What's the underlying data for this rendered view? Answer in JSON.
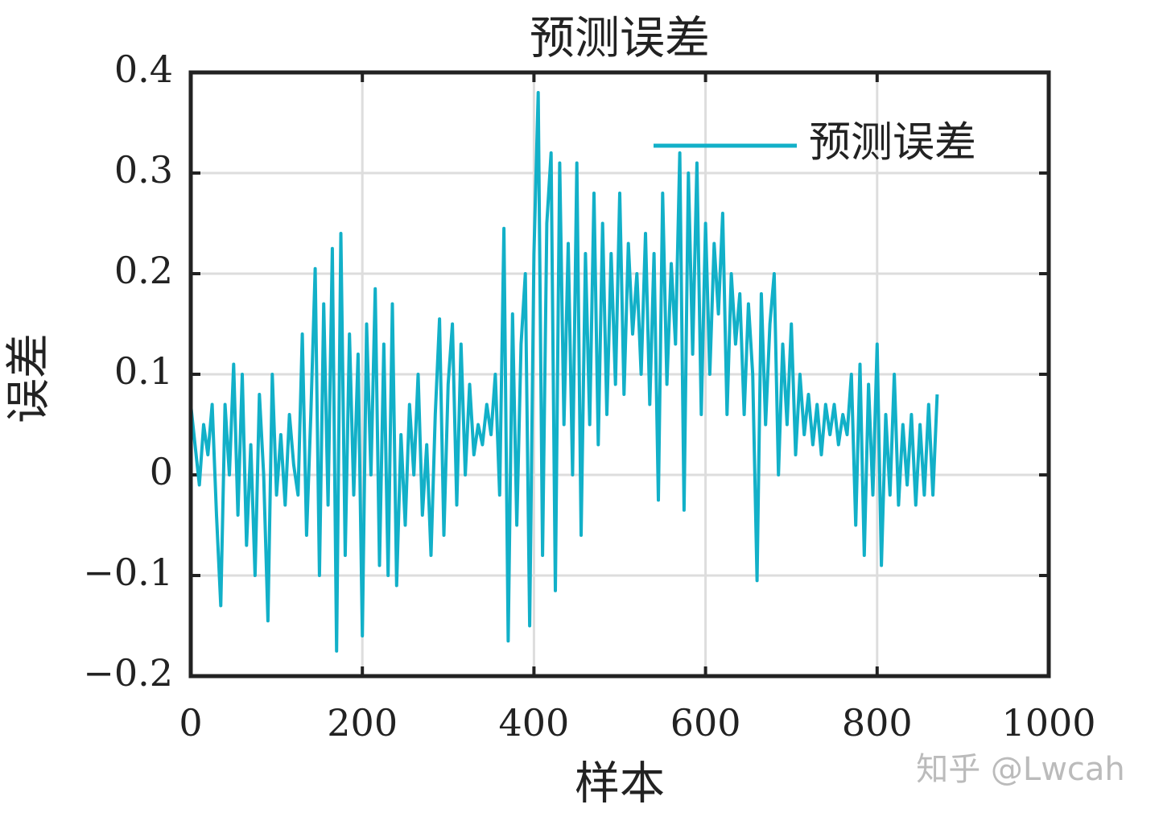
{
  "chart_data": {
    "type": "line",
    "title": "预测误差",
    "xlabel": "样本",
    "ylabel": "误差",
    "watermark": "知乎 @Lwcah",
    "xlim": [
      0,
      1000
    ],
    "xticks": [
      0,
      200,
      400,
      600,
      800,
      1000
    ],
    "ylim": [
      -0.2,
      0.4
    ],
    "yticks": [
      {
        "value": -0.2,
        "label": "−0.2"
      },
      {
        "value": -0.1,
        "label": "−0.1"
      },
      0,
      0.1,
      0.2,
      0.3,
      0.4
    ],
    "grid": true,
    "legend": "upper right",
    "x": [
      0,
      5,
      10,
      15,
      20,
      25,
      30,
      35,
      40,
      45,
      50,
      55,
      60,
      65,
      70,
      75,
      80,
      85,
      90,
      95,
      100,
      105,
      110,
      115,
      120,
      125,
      130,
      135,
      140,
      145,
      150,
      155,
      160,
      165,
      170,
      175,
      180,
      185,
      190,
      195,
      200,
      205,
      210,
      215,
      220,
      225,
      230,
      235,
      240,
      245,
      250,
      255,
      260,
      265,
      270,
      275,
      280,
      285,
      290,
      295,
      300,
      305,
      310,
      315,
      320,
      325,
      330,
      335,
      340,
      345,
      350,
      355,
      360,
      365,
      370,
      375,
      380,
      385,
      390,
      395,
      400,
      405,
      410,
      415,
      420,
      425,
      430,
      435,
      440,
      445,
      450,
      455,
      460,
      465,
      470,
      475,
      480,
      485,
      490,
      495,
      500,
      505,
      510,
      515,
      520,
      525,
      530,
      535,
      540,
      545,
      550,
      555,
      560,
      565,
      570,
      575,
      580,
      585,
      590,
      595,
      600,
      605,
      610,
      615,
      620,
      625,
      630,
      635,
      640,
      645,
      650,
      655,
      660,
      665,
      670,
      675,
      680,
      685,
      690,
      695,
      700,
      705,
      710,
      715,
      720,
      725,
      730,
      735,
      740,
      745,
      750,
      755,
      760,
      765,
      770,
      775,
      780,
      785,
      790,
      795,
      800,
      805,
      810,
      815,
      820,
      825,
      830,
      835,
      840,
      845,
      850,
      855,
      860,
      865,
      870
    ],
    "series": [
      {
        "name": "预测误差",
        "color": "#12b0c8",
        "values": [
          0.07,
          0.03,
          -0.01,
          0.05,
          0.02,
          0.07,
          -0.04,
          -0.13,
          0.07,
          0.0,
          0.11,
          -0.04,
          0.1,
          -0.07,
          0.03,
          -0.1,
          0.08,
          0.0,
          -0.145,
          0.1,
          -0.02,
          0.04,
          -0.03,
          0.06,
          0.01,
          -0.02,
          0.14,
          -0.06,
          0.06,
          0.205,
          -0.1,
          0.17,
          -0.03,
          0.225,
          -0.175,
          0.24,
          -0.08,
          0.14,
          -0.02,
          0.12,
          -0.16,
          0.15,
          0.0,
          0.185,
          -0.09,
          0.13,
          -0.1,
          0.17,
          -0.11,
          0.04,
          -0.05,
          0.07,
          0.0,
          0.1,
          -0.04,
          0.03,
          -0.08,
          0.06,
          0.155,
          -0.06,
          0.09,
          0.15,
          -0.03,
          0.13,
          0.0,
          0.09,
          0.02,
          0.05,
          0.03,
          0.07,
          0.04,
          0.1,
          -0.02,
          0.245,
          -0.165,
          0.16,
          -0.05,
          0.13,
          0.2,
          -0.15,
          0.22,
          0.38,
          -0.08,
          0.25,
          0.32,
          -0.115,
          0.31,
          0.05,
          0.23,
          0.0,
          0.31,
          -0.06,
          0.22,
          0.05,
          0.28,
          0.03,
          0.25,
          0.06,
          0.22,
          0.09,
          0.28,
          0.08,
          0.23,
          0.14,
          0.2,
          0.1,
          0.24,
          0.07,
          0.22,
          -0.025,
          0.28,
          0.09,
          0.21,
          0.13,
          0.32,
          -0.035,
          0.3,
          0.12,
          0.31,
          0.06,
          0.25,
          0.1,
          0.23,
          0.16,
          0.26,
          0.06,
          0.2,
          0.13,
          0.18,
          0.06,
          0.17,
          0.1,
          -0.105,
          0.18,
          0.05,
          0.15,
          0.2,
          0.0,
          0.13,
          0.05,
          0.15,
          0.02,
          0.1,
          0.04,
          0.08,
          0.03,
          0.07,
          0.02,
          0.07,
          0.04,
          0.07,
          0.03,
          0.06,
          0.04,
          0.1,
          -0.05,
          0.11,
          -0.08,
          0.09,
          -0.02,
          0.13,
          -0.09,
          0.06,
          -0.02,
          0.1,
          -0.03,
          0.05,
          -0.01,
          0.06,
          -0.03,
          0.05,
          -0.02,
          0.07,
          -0.02,
          0.08
        ]
      }
    ]
  }
}
